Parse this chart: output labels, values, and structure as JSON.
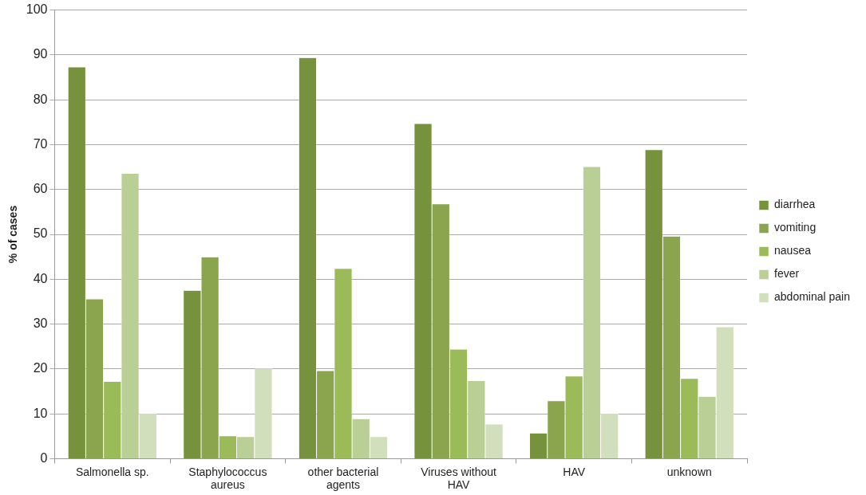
{
  "chart_data": {
    "type": "bar",
    "ylabel": "% of cases",
    "categories": [
      "Salmonella sp.",
      "Staphylococcus aureus",
      "other bacterial agents",
      "Viruses without HAV",
      "HAV",
      "unknown"
    ],
    "series": [
      {
        "name": "diarrhea",
        "color": "#76923c",
        "values": [
          87.3,
          37.5,
          89.4,
          74.7,
          5.7,
          68.9
        ]
      },
      {
        "name": "vomiting",
        "color": "#8aa54e",
        "values": [
          35.6,
          45.0,
          19.6,
          56.8,
          12.9,
          49.6
        ]
      },
      {
        "name": "nausea",
        "color": "#9bbb59",
        "values": [
          17.2,
          5.1,
          42.4,
          24.4,
          18.4,
          17.9
        ]
      },
      {
        "name": "fever",
        "color": "#b9cf95",
        "values": [
          63.6,
          4.9,
          8.9,
          17.4,
          65.1,
          13.9
        ]
      },
      {
        "name": "abdominal pain",
        "color": "#d2dfbd",
        "values": [
          10.1,
          20.1,
          4.9,
          7.7,
          10.0,
          29.4
        ]
      }
    ],
    "ylim": [
      0,
      100
    ],
    "yticks": [
      0,
      10,
      20,
      30,
      40,
      50,
      60,
      70,
      80,
      90,
      100
    ],
    "grid": "y",
    "legend": "right"
  }
}
